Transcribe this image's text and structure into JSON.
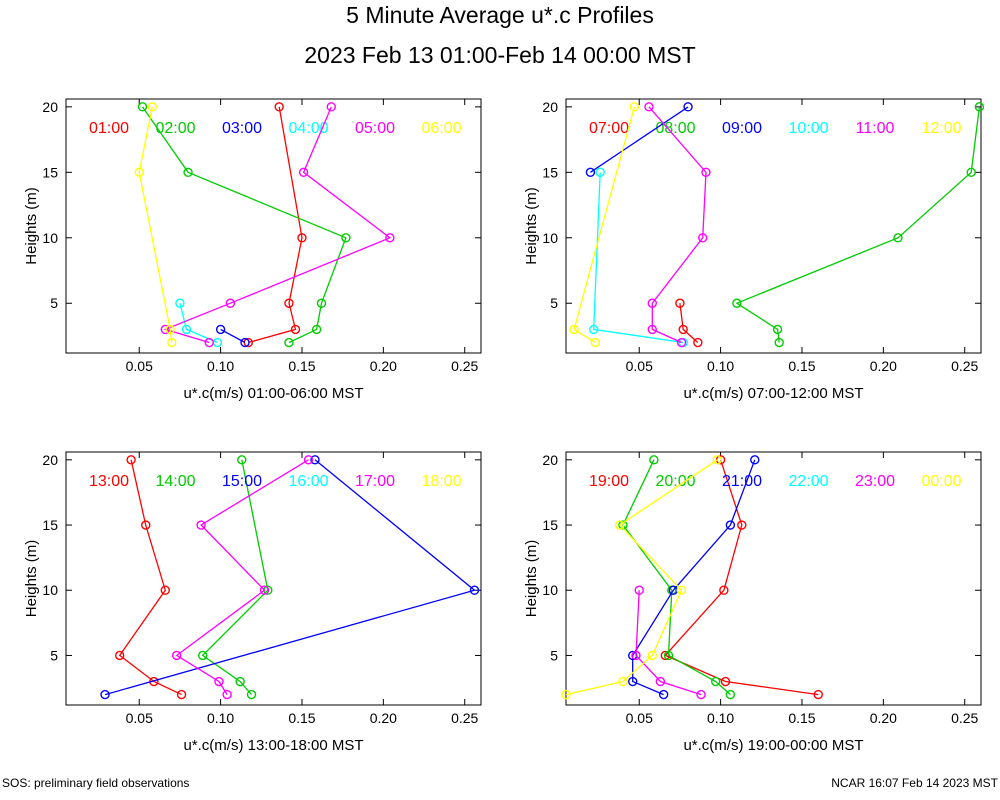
{
  "title": "5 Minute Average u*.c Profiles",
  "subtitle": "2023 Feb 13 01:00-Feb 14 00:00 MST",
  "footer_left": "SOS: preliminary field observations",
  "footer_right": "NCAR 16:07 Feb 14 2023 MST",
  "chart_data": [
    {
      "type": "line",
      "xlabel": "u*.c(m/s) 01:00-06:00 MST",
      "ylabel": "Heights (m)",
      "xlim": [
        0.005,
        0.26
      ],
      "ylim": [
        1.2,
        20.6
      ],
      "xticks": [
        "0.05",
        "0.10",
        "0.15",
        "0.20",
        "0.25"
      ],
      "yticks": [
        "5",
        "10",
        "15",
        "20"
      ],
      "series": [
        {
          "name": "01:00",
          "color": "#ff0000",
          "points": [
            [
              0.117,
              2
            ],
            [
              0.146,
              3
            ],
            [
              0.142,
              5
            ],
            [
              0.15,
              10
            ],
            [
              0.136,
              20
            ]
          ]
        },
        {
          "name": "02:00",
          "color": "#00cc00",
          "points": [
            [
              0.142,
              2
            ],
            [
              0.159,
              3
            ],
            [
              0.162,
              5
            ],
            [
              0.177,
              10
            ],
            [
              0.08,
              15
            ],
            [
              0.052,
              20
            ]
          ]
        },
        {
          "name": "03:00",
          "color": "#0000ff",
          "points": [
            [
              0.115,
              2
            ],
            [
              0.1,
              3
            ]
          ]
        },
        {
          "name": "04:00",
          "color": "#00ffff",
          "points": [
            [
              0.098,
              2
            ],
            [
              0.079,
              3
            ],
            [
              0.075,
              5
            ]
          ]
        },
        {
          "name": "05:00",
          "color": "#ff00ff",
          "points": [
            [
              0.093,
              2
            ],
            [
              0.066,
              3
            ],
            [
              0.106,
              5
            ],
            [
              0.204,
              10
            ],
            [
              0.151,
              15
            ],
            [
              0.168,
              20
            ]
          ]
        },
        {
          "name": "06:00",
          "color": "#ffff00",
          "points": [
            [
              0.07,
              2
            ],
            [
              0.069,
              3
            ],
            [
              0.05,
              15
            ],
            [
              0.058,
              20
            ]
          ]
        }
      ]
    },
    {
      "type": "line",
      "xlabel": "u*.c(m/s) 07:00-12:00 MST",
      "ylabel": "Heights (m)",
      "xlim": [
        0.005,
        0.26
      ],
      "ylim": [
        1.2,
        20.6
      ],
      "xticks": [
        "0.05",
        "0.10",
        "0.15",
        "0.20",
        "0.25"
      ],
      "yticks": [
        "5",
        "10",
        "15",
        "20"
      ],
      "series": [
        {
          "name": "07:00",
          "color": "#ff0000",
          "points": [
            [
              0.086,
              2
            ],
            [
              0.077,
              3
            ],
            [
              0.075,
              5
            ]
          ]
        },
        {
          "name": "08:00",
          "color": "#00cc00",
          "points": [
            [
              0.136,
              2
            ],
            [
              0.135,
              3
            ],
            [
              0.11,
              5
            ],
            [
              0.209,
              10
            ],
            [
              0.254,
              15
            ],
            [
              0.259,
              20
            ]
          ]
        },
        {
          "name": "09:00",
          "color": "#0000ff",
          "points": [
            [
              0.02,
              15
            ],
            [
              0.08,
              20
            ]
          ]
        },
        {
          "name": "10:00",
          "color": "#00ffff",
          "points": [
            [
              0.077,
              2
            ],
            [
              0.022,
              3
            ],
            [
              0.026,
              15
            ]
          ]
        },
        {
          "name": "11:00",
          "color": "#ff00ff",
          "points": [
            [
              0.076,
              2
            ],
            [
              0.058,
              3
            ],
            [
              0.058,
              5
            ],
            [
              0.089,
              10
            ],
            [
              0.091,
              15
            ],
            [
              0.056,
              20
            ]
          ]
        },
        {
          "name": "12:00",
          "color": "#ffff00",
          "points": [
            [
              0.023,
              2
            ],
            [
              0.01,
              3
            ],
            [
              0.047,
              20
            ]
          ]
        }
      ]
    },
    {
      "type": "line",
      "xlabel": "u*.c(m/s) 13:00-18:00 MST",
      "ylabel": "Heights (m)",
      "xlim": [
        0.005,
        0.26
      ],
      "ylim": [
        1.2,
        20.6
      ],
      "xticks": [
        "0.05",
        "0.10",
        "0.15",
        "0.20",
        "0.25"
      ],
      "yticks": [
        "5",
        "10",
        "15",
        "20"
      ],
      "series": [
        {
          "name": "13:00",
          "color": "#ff0000",
          "points": [
            [
              0.076,
              2
            ],
            [
              0.059,
              3
            ],
            [
              0.038,
              5
            ],
            [
              0.066,
              10
            ],
            [
              0.054,
              15
            ],
            [
              0.045,
              20
            ]
          ]
        },
        {
          "name": "14:00",
          "color": "#00cc00",
          "points": [
            [
              0.119,
              2
            ],
            [
              0.112,
              3
            ],
            [
              0.089,
              5
            ],
            [
              0.129,
              10
            ],
            [
              0.113,
              20
            ]
          ]
        },
        {
          "name": "15:00",
          "color": "#0000ff",
          "points": [
            [
              0.029,
              2
            ],
            [
              0.256,
              10
            ],
            [
              0.158,
              20
            ]
          ]
        },
        {
          "name": "16:00",
          "color": "#00ffff",
          "points": []
        },
        {
          "name": "17:00",
          "color": "#ff00ff",
          "points": [
            [
              0.104,
              2
            ],
            [
              0.099,
              3
            ],
            [
              0.073,
              5
            ],
            [
              0.127,
              10
            ],
            [
              0.088,
              15
            ],
            [
              0.154,
              20
            ]
          ]
        },
        {
          "name": "18:00",
          "color": "#ffff00",
          "points": []
        }
      ]
    },
    {
      "type": "line",
      "xlabel": "u*.c(m/s) 19:00-00:00 MST",
      "ylabel": "Heights (m)",
      "xlim": [
        0.005,
        0.26
      ],
      "ylim": [
        1.2,
        20.6
      ],
      "xticks": [
        "0.05",
        "0.10",
        "0.15",
        "0.20",
        "0.25"
      ],
      "yticks": [
        "5",
        "10",
        "15",
        "20"
      ],
      "series": [
        {
          "name": "19:00",
          "color": "#ff0000",
          "points": [
            [
              0.16,
              2
            ],
            [
              0.103,
              3
            ],
            [
              0.066,
              5
            ],
            [
              0.102,
              10
            ],
            [
              0.113,
              15
            ],
            [
              0.1,
              20
            ]
          ]
        },
        {
          "name": "20:00",
          "color": "#00cc00",
          "points": [
            [
              0.106,
              2
            ],
            [
              0.097,
              3
            ],
            [
              0.068,
              5
            ],
            [
              0.07,
              10
            ],
            [
              0.04,
              15
            ],
            [
              0.059,
              20
            ]
          ]
        },
        {
          "name": "21:00",
          "color": "#0000ff",
          "points": [
            [
              0.065,
              2
            ],
            [
              0.046,
              3
            ],
            [
              0.046,
              5
            ],
            [
              0.071,
              10
            ],
            [
              0.106,
              15
            ],
            [
              0.121,
              20
            ]
          ]
        },
        {
          "name": "22:00",
          "color": "#00ffff",
          "points": []
        },
        {
          "name": "23:00",
          "color": "#ff00ff",
          "points": [
            [
              0.088,
              2
            ],
            [
              0.063,
              3
            ],
            [
              0.048,
              5
            ],
            [
              0.05,
              10
            ]
          ]
        },
        {
          "name": "00:00",
          "color": "#ffff00",
          "points": [
            [
              0.005,
              2
            ],
            [
              0.04,
              3
            ],
            [
              0.058,
              5
            ],
            [
              0.076,
              10
            ],
            [
              0.038,
              15
            ],
            [
              0.098,
              20
            ]
          ]
        }
      ]
    }
  ]
}
